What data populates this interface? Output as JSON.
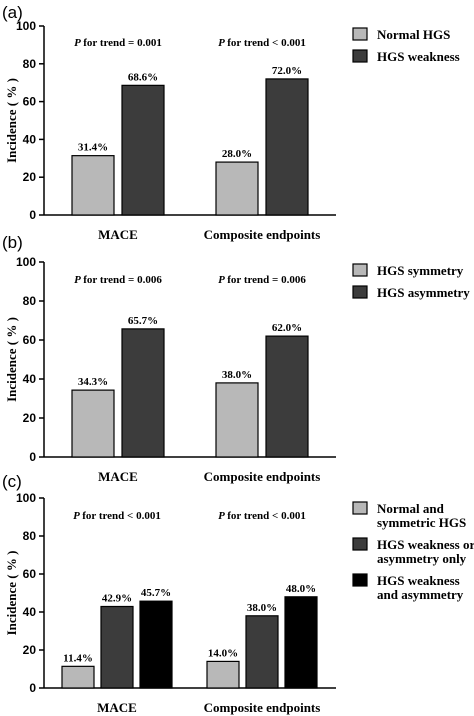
{
  "chart_data": [
    {
      "type": "bar",
      "panel_label": "(a)",
      "ylabel": "Incidence ( % )",
      "ylim": [
        0,
        100
      ],
      "yticks": [
        0,
        20,
        40,
        60,
        80,
        100
      ],
      "categories": [
        "MACE",
        "Composite endpoints"
      ],
      "p_trend": [
        "for trend = 0.001",
        "for trend < 0.001"
      ],
      "legend_position": "right",
      "series": [
        {
          "name": "Normal HGS",
          "color": "#b8b8b8",
          "values": [
            31.4,
            28.0
          ],
          "labels": [
            "31.4%",
            "28.0%"
          ]
        },
        {
          "name": "HGS weakness",
          "color": "#3c3c3c",
          "values": [
            68.6,
            72.0
          ],
          "labels": [
            "68.6%",
            "72.0%"
          ]
        }
      ]
    },
    {
      "type": "bar",
      "panel_label": "(b)",
      "ylabel": "Incidence ( % )",
      "ylim": [
        0,
        100
      ],
      "yticks": [
        0,
        20,
        40,
        60,
        80,
        100
      ],
      "categories": [
        "MACE",
        "Composite endpoints"
      ],
      "p_trend": [
        "for trend = 0.006",
        "for trend = 0.006"
      ],
      "legend_position": "right",
      "series": [
        {
          "name": "HGS symmetry",
          "color": "#b8b8b8",
          "values": [
            34.3,
            38.0
          ],
          "labels": [
            "34.3%",
            "38.0%"
          ]
        },
        {
          "name": "HGS asymmetry",
          "color": "#3c3c3c",
          "values": [
            65.7,
            62.0
          ],
          "labels": [
            "65.7%",
            "62.0%"
          ]
        }
      ]
    },
    {
      "type": "bar",
      "panel_label": "(c)",
      "ylabel": "Incidence ( % )",
      "ylim": [
        0,
        100
      ],
      "yticks": [
        0,
        20,
        40,
        60,
        80,
        100
      ],
      "categories": [
        "MACE",
        "Composite endpoints"
      ],
      "p_trend": [
        "for trend < 0.001",
        "for trend < 0.001"
      ],
      "legend_position": "right",
      "series": [
        {
          "name": "Normal and symmetric HGS",
          "legend_lines": [
            "Normal and",
            "symmetric HGS"
          ],
          "color": "#b8b8b8",
          "values": [
            11.4,
            14.0
          ],
          "labels": [
            "11.4%",
            "14.0%"
          ]
        },
        {
          "name": "HGS weakness or asymmetry only",
          "legend_lines": [
            "HGS weakness or",
            "asymmetry only"
          ],
          "color": "#3c3c3c",
          "values": [
            42.9,
            38.0
          ],
          "labels": [
            "42.9%",
            "38.0%"
          ]
        },
        {
          "name": "HGS weakness and asymmetry",
          "legend_lines": [
            "HGS weakness",
            "and asymmetry"
          ],
          "color": "#000000",
          "values": [
            45.7,
            48.0
          ],
          "labels": [
            "45.7%",
            "48.0%"
          ]
        }
      ]
    }
  ],
  "p_letter": "P"
}
